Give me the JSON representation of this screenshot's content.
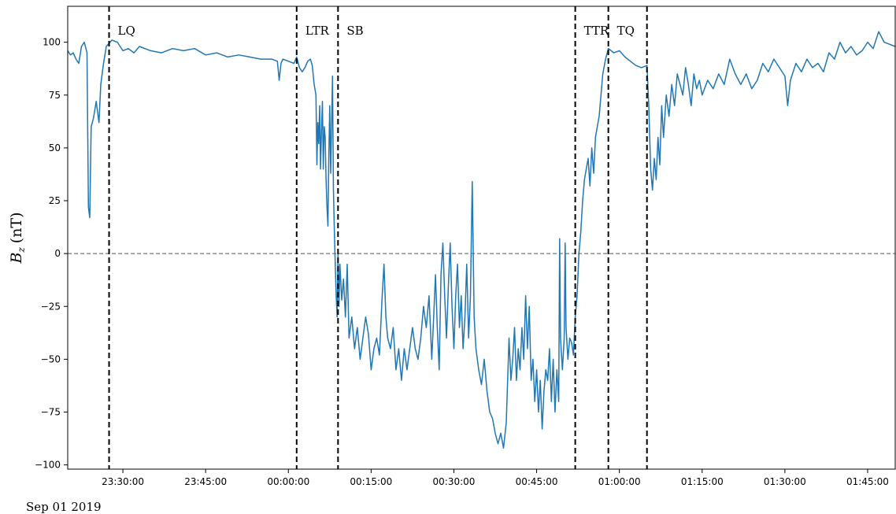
{
  "chart_data": {
    "type": "line",
    "ylabel_main": "B",
    "ylabel_sub": "z",
    "ylabel_unit": "(nT)",
    "date_label": "Sep 01 2019",
    "xlim": [
      "23:20:00",
      "01:50:00"
    ],
    "ylim": [
      -102,
      117
    ],
    "x_ticks": [
      "23:30:00",
      "23:45:00",
      "00:00:00",
      "00:15:00",
      "00:30:00",
      "00:45:00",
      "01:00:00",
      "01:15:00",
      "01:30:00",
      "01:45:00"
    ],
    "y_ticks": [
      "100",
      "75",
      "50",
      "25",
      "0",
      "−25",
      "−50",
      "−75",
      "−100"
    ],
    "y_tick_values": [
      100,
      75,
      50,
      25,
      0,
      -25,
      -50,
      -75,
      -100
    ],
    "zero_line": 0,
    "boundaries": [
      {
        "time": "23:27:30",
        "label": "LQ"
      },
      {
        "time": "00:01:30",
        "label": "LTR"
      },
      {
        "time": "00:09:00",
        "label": "SB"
      },
      {
        "time": "00:52:00",
        "label": "TTR"
      },
      {
        "time": "00:58:00",
        "label": "TQ"
      },
      {
        "time": "01:05:00",
        "label": ""
      }
    ],
    "series": [
      {
        "color": "#1f77b4",
        "points": [
          [
            "23:20:00",
            96
          ],
          [
            "23:20:30",
            94
          ],
          [
            "23:21:00",
            95
          ],
          [
            "23:21:30",
            92
          ],
          [
            "23:22:00",
            90
          ],
          [
            "23:22:30",
            98
          ],
          [
            "23:23:00",
            100
          ],
          [
            "23:23:30",
            95
          ],
          [
            "23:23:45",
            22
          ],
          [
            "23:24:00",
            17
          ],
          [
            "23:24:15",
            60
          ],
          [
            "23:24:40",
            64
          ],
          [
            "23:25:10",
            72
          ],
          [
            "23:25:40",
            62
          ],
          [
            "23:26:00",
            80
          ],
          [
            "23:26:30",
            90
          ],
          [
            "23:27:00",
            98
          ],
          [
            "23:28:00",
            101
          ],
          [
            "23:29:00",
            100
          ],
          [
            "23:30:00",
            96
          ],
          [
            "23:31:00",
            97
          ],
          [
            "23:32:00",
            95
          ],
          [
            "23:33:00",
            98
          ],
          [
            "23:35:00",
            96
          ],
          [
            "23:37:00",
            95
          ],
          [
            "23:39:00",
            97
          ],
          [
            "23:41:00",
            96
          ],
          [
            "23:43:00",
            97
          ],
          [
            "23:45:00",
            94
          ],
          [
            "23:47:00",
            95
          ],
          [
            "23:49:00",
            93
          ],
          [
            "23:51:00",
            94
          ],
          [
            "23:53:00",
            93
          ],
          [
            "23:55:00",
            92
          ],
          [
            "23:57:00",
            92
          ],
          [
            "23:58:00",
            91
          ],
          [
            "23:58:20",
            82
          ],
          [
            "23:58:40",
            90
          ],
          [
            "23:59:00",
            92
          ],
          [
            "00:00:00",
            91
          ],
          [
            "00:01:00",
            90
          ],
          [
            "00:01:30",
            93
          ],
          [
            "00:02:00",
            88
          ],
          [
            "00:02:30",
            86
          ],
          [
            "00:03:00",
            88
          ],
          [
            "00:03:30",
            91
          ],
          [
            "00:04:00",
            92
          ],
          [
            "00:04:20",
            89
          ],
          [
            "00:04:40",
            80
          ],
          [
            "00:05:00",
            75
          ],
          [
            "00:05:10",
            42
          ],
          [
            "00:05:20",
            62
          ],
          [
            "00:05:30",
            52
          ],
          [
            "00:05:40",
            70
          ],
          [
            "00:05:50",
            40
          ],
          [
            "00:06:00",
            58
          ],
          [
            "00:06:10",
            72
          ],
          [
            "00:06:20",
            40
          ],
          [
            "00:06:30",
            60
          ],
          [
            "00:06:40",
            55
          ],
          [
            "00:06:50",
            35
          ],
          [
            "00:07:00",
            22
          ],
          [
            "00:07:10",
            13
          ],
          [
            "00:07:20",
            45
          ],
          [
            "00:07:30",
            70
          ],
          [
            "00:07:40",
            38
          ],
          [
            "00:07:50",
            62
          ],
          [
            "00:08:00",
            84
          ],
          [
            "00:08:10",
            30
          ],
          [
            "00:08:20",
            10
          ],
          [
            "00:08:30",
            -5
          ],
          [
            "00:08:40",
            -20
          ],
          [
            "00:08:50",
            -30
          ],
          [
            "00:09:00",
            0
          ],
          [
            "00:09:10",
            -25
          ],
          [
            "00:09:20",
            -5
          ],
          [
            "00:09:40",
            -22
          ],
          [
            "00:10:00",
            -12
          ],
          [
            "00:10:20",
            -30
          ],
          [
            "00:10:40",
            -5
          ],
          [
            "00:11:00",
            -40
          ],
          [
            "00:11:30",
            -30
          ],
          [
            "00:12:00",
            -45
          ],
          [
            "00:12:30",
            -35
          ],
          [
            "00:13:00",
            -50
          ],
          [
            "00:13:30",
            -40
          ],
          [
            "00:14:00",
            -30
          ],
          [
            "00:14:30",
            -38
          ],
          [
            "00:15:00",
            -55
          ],
          [
            "00:15:30",
            -45
          ],
          [
            "00:16:00",
            -40
          ],
          [
            "00:16:30",
            -48
          ],
          [
            "00:17:00",
            -20
          ],
          [
            "00:17:20",
            -5
          ],
          [
            "00:17:40",
            -30
          ],
          [
            "00:18:00",
            -40
          ],
          [
            "00:18:30",
            -45
          ],
          [
            "00:19:00",
            -35
          ],
          [
            "00:19:30",
            -55
          ],
          [
            "00:20:00",
            -45
          ],
          [
            "00:20:30",
            -60
          ],
          [
            "00:21:00",
            -45
          ],
          [
            "00:21:30",
            -55
          ],
          [
            "00:22:00",
            -45
          ],
          [
            "00:22:30",
            -35
          ],
          [
            "00:23:00",
            -45
          ],
          [
            "00:23:30",
            -50
          ],
          [
            "00:24:00",
            -40
          ],
          [
            "00:24:30",
            -25
          ],
          [
            "00:25:00",
            -35
          ],
          [
            "00:25:30",
            -20
          ],
          [
            "00:26:00",
            -50
          ],
          [
            "00:26:20",
            -30
          ],
          [
            "00:26:40",
            -10
          ],
          [
            "00:27:00",
            -35
          ],
          [
            "00:27:20",
            -55
          ],
          [
            "00:27:40",
            -10
          ],
          [
            "00:28:00",
            5
          ],
          [
            "00:28:20",
            -20
          ],
          [
            "00:28:40",
            -40
          ],
          [
            "00:29:00",
            -15
          ],
          [
            "00:29:20",
            5
          ],
          [
            "00:29:40",
            -25
          ],
          [
            "00:30:00",
            -45
          ],
          [
            "00:30:20",
            -20
          ],
          [
            "00:30:40",
            -5
          ],
          [
            "00:31:00",
            -35
          ],
          [
            "00:31:20",
            -20
          ],
          [
            "00:31:40",
            -45
          ],
          [
            "00:32:00",
            -30
          ],
          [
            "00:32:20",
            -5
          ],
          [
            "00:32:40",
            -40
          ],
          [
            "00:33:00",
            -20
          ],
          [
            "00:33:20",
            34
          ],
          [
            "00:33:40",
            -30
          ],
          [
            "00:34:00",
            -45
          ],
          [
            "00:34:30",
            -55
          ],
          [
            "00:35:00",
            -62
          ],
          [
            "00:35:30",
            -50
          ],
          [
            "00:36:00",
            -65
          ],
          [
            "00:36:30",
            -75
          ],
          [
            "00:37:00",
            -78
          ],
          [
            "00:37:30",
            -85
          ],
          [
            "00:38:00",
            -90
          ],
          [
            "00:38:30",
            -85
          ],
          [
            "00:39:00",
            -92
          ],
          [
            "00:39:30",
            -80
          ],
          [
            "00:40:00",
            -40
          ],
          [
            "00:40:20",
            -60
          ],
          [
            "00:40:40",
            -50
          ],
          [
            "00:41:00",
            -35
          ],
          [
            "00:41:20",
            -60
          ],
          [
            "00:41:40",
            -45
          ],
          [
            "00:42:00",
            -55
          ],
          [
            "00:42:20",
            -35
          ],
          [
            "00:42:40",
            -50
          ],
          [
            "00:43:00",
            -20
          ],
          [
            "00:43:20",
            -45
          ],
          [
            "00:43:40",
            -25
          ],
          [
            "00:44:00",
            -60
          ],
          [
            "00:44:20",
            -50
          ],
          [
            "00:44:40",
            -70
          ],
          [
            "00:45:00",
            -55
          ],
          [
            "00:45:20",
            -75
          ],
          [
            "00:45:40",
            -60
          ],
          [
            "00:46:00",
            -83
          ],
          [
            "00:46:20",
            -65
          ],
          [
            "00:46:40",
            -55
          ],
          [
            "00:47:00",
            -60
          ],
          [
            "00:47:20",
            -45
          ],
          [
            "00:47:40",
            -70
          ],
          [
            "00:48:00",
            -50
          ],
          [
            "00:48:20",
            -75
          ],
          [
            "00:48:40",
            -55
          ],
          [
            "00:49:00",
            -70
          ],
          [
            "00:49:10",
            7
          ],
          [
            "00:49:20",
            -40
          ],
          [
            "00:49:40",
            -55
          ],
          [
            "00:50:00",
            -40
          ],
          [
            "00:50:10",
            5
          ],
          [
            "00:50:20",
            -35
          ],
          [
            "00:50:40",
            -50
          ],
          [
            "00:51:00",
            -40
          ],
          [
            "00:51:20",
            -42
          ],
          [
            "00:51:40",
            -48
          ],
          [
            "00:52:00",
            -30
          ],
          [
            "00:52:20",
            -20
          ],
          [
            "00:52:40",
            0
          ],
          [
            "00:53:00",
            10
          ],
          [
            "00:53:20",
            25
          ],
          [
            "00:53:40",
            35
          ],
          [
            "00:54:00",
            40
          ],
          [
            "00:54:20",
            45
          ],
          [
            "00:54:40",
            32
          ],
          [
            "00:55:00",
            50
          ],
          [
            "00:55:20",
            38
          ],
          [
            "00:55:40",
            55
          ],
          [
            "00:56:00",
            60
          ],
          [
            "00:56:20",
            65
          ],
          [
            "00:56:40",
            75
          ],
          [
            "00:57:00",
            85
          ],
          [
            "00:57:30",
            92
          ],
          [
            "00:58:00",
            97
          ],
          [
            "00:59:00",
            95
          ],
          [
            "01:00:00",
            96
          ],
          [
            "01:01:00",
            93
          ],
          [
            "01:02:00",
            91
          ],
          [
            "01:03:00",
            89
          ],
          [
            "01:04:00",
            88
          ],
          [
            "01:05:00",
            89
          ],
          [
            "01:05:20",
            70
          ],
          [
            "01:05:40",
            40
          ],
          [
            "01:06:00",
            30
          ],
          [
            "01:06:20",
            45
          ],
          [
            "01:06:40",
            35
          ],
          [
            "01:07:00",
            55
          ],
          [
            "01:07:20",
            42
          ],
          [
            "01:07:40",
            70
          ],
          [
            "01:08:00",
            55
          ],
          [
            "01:08:30",
            75
          ],
          [
            "01:09:00",
            65
          ],
          [
            "01:09:30",
            80
          ],
          [
            "01:10:00",
            70
          ],
          [
            "01:10:30",
            85
          ],
          [
            "01:11:00",
            80
          ],
          [
            "01:11:30",
            75
          ],
          [
            "01:12:00",
            88
          ],
          [
            "01:12:30",
            80
          ],
          [
            "01:13:00",
            70
          ],
          [
            "01:13:30",
            85
          ],
          [
            "01:14:00",
            78
          ],
          [
            "01:14:30",
            82
          ],
          [
            "01:15:00",
            75
          ],
          [
            "01:16:00",
            82
          ],
          [
            "01:17:00",
            78
          ],
          [
            "01:18:00",
            85
          ],
          [
            "01:19:00",
            80
          ],
          [
            "01:20:00",
            92
          ],
          [
            "01:21:00",
            85
          ],
          [
            "01:22:00",
            80
          ],
          [
            "01:23:00",
            85
          ],
          [
            "01:24:00",
            78
          ],
          [
            "01:25:00",
            82
          ],
          [
            "01:26:00",
            90
          ],
          [
            "01:27:00",
            86
          ],
          [
            "01:28:00",
            92
          ],
          [
            "01:29:00",
            88
          ],
          [
            "01:30:00",
            84
          ],
          [
            "01:30:30",
            70
          ],
          [
            "01:31:00",
            82
          ],
          [
            "01:32:00",
            90
          ],
          [
            "01:33:00",
            86
          ],
          [
            "01:34:00",
            92
          ],
          [
            "01:35:00",
            88
          ],
          [
            "01:36:00",
            90
          ],
          [
            "01:37:00",
            86
          ],
          [
            "01:38:00",
            95
          ],
          [
            "01:39:00",
            92
          ],
          [
            "01:40:00",
            100
          ],
          [
            "01:41:00",
            95
          ],
          [
            "01:42:00",
            98
          ],
          [
            "01:43:00",
            94
          ],
          [
            "01:44:00",
            96
          ],
          [
            "01:45:00",
            100
          ],
          [
            "01:46:00",
            97
          ],
          [
            "01:47:00",
            105
          ],
          [
            "01:48:00",
            100
          ],
          [
            "01:49:00",
            99
          ],
          [
            "01:50:00",
            98
          ]
        ]
      }
    ]
  }
}
